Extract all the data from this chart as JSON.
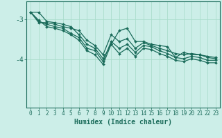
{
  "xlabel": "Humidex (Indice chaleur)",
  "bg_color": "#cceee8",
  "line_color": "#1a6b5a",
  "grid_color": "#aaddcc",
  "xlim": [
    -0.5,
    23.5
  ],
  "ylim": [
    -5.2,
    -2.55
  ],
  "yticks": [
    -4,
    -3
  ],
  "xticks": [
    0,
    1,
    2,
    3,
    4,
    5,
    6,
    7,
    8,
    9,
    10,
    11,
    12,
    13,
    14,
    15,
    16,
    17,
    18,
    19,
    20,
    21,
    22,
    23
  ],
  "series": [
    [
      -2.82,
      -2.82,
      -3.05,
      -3.08,
      -3.12,
      -3.18,
      -3.38,
      -3.62,
      -3.72,
      -3.98,
      -3.62,
      -3.28,
      -3.22,
      -3.55,
      -3.55,
      -3.62,
      -3.65,
      -3.68,
      -3.95,
      -3.82,
      -3.88,
      -3.88,
      -3.92,
      -3.95
    ],
    [
      -2.82,
      -3.08,
      -3.08,
      -3.12,
      -3.18,
      -3.22,
      -3.28,
      -3.52,
      -3.65,
      -3.88,
      -3.38,
      -3.55,
      -3.48,
      -3.72,
      -3.58,
      -3.65,
      -3.72,
      -3.78,
      -3.85,
      -3.88,
      -3.85,
      -3.88,
      -3.95,
      -3.98
    ],
    [
      -2.82,
      -3.05,
      -3.12,
      -3.18,
      -3.22,
      -3.35,
      -3.45,
      -3.72,
      -3.78,
      -4.05,
      -3.55,
      -3.72,
      -3.62,
      -3.82,
      -3.65,
      -3.68,
      -3.78,
      -3.85,
      -3.95,
      -3.98,
      -3.92,
      -3.95,
      -4.02,
      -4.02
    ],
    [
      -2.82,
      -3.02,
      -3.18,
      -3.22,
      -3.28,
      -3.38,
      -3.52,
      -3.78,
      -3.88,
      -4.12,
      -3.62,
      -3.85,
      -3.72,
      -3.92,
      -3.72,
      -3.75,
      -3.85,
      -3.92,
      -4.02,
      -4.05,
      -3.98,
      -4.02,
      -4.08,
      -4.08
    ]
  ]
}
